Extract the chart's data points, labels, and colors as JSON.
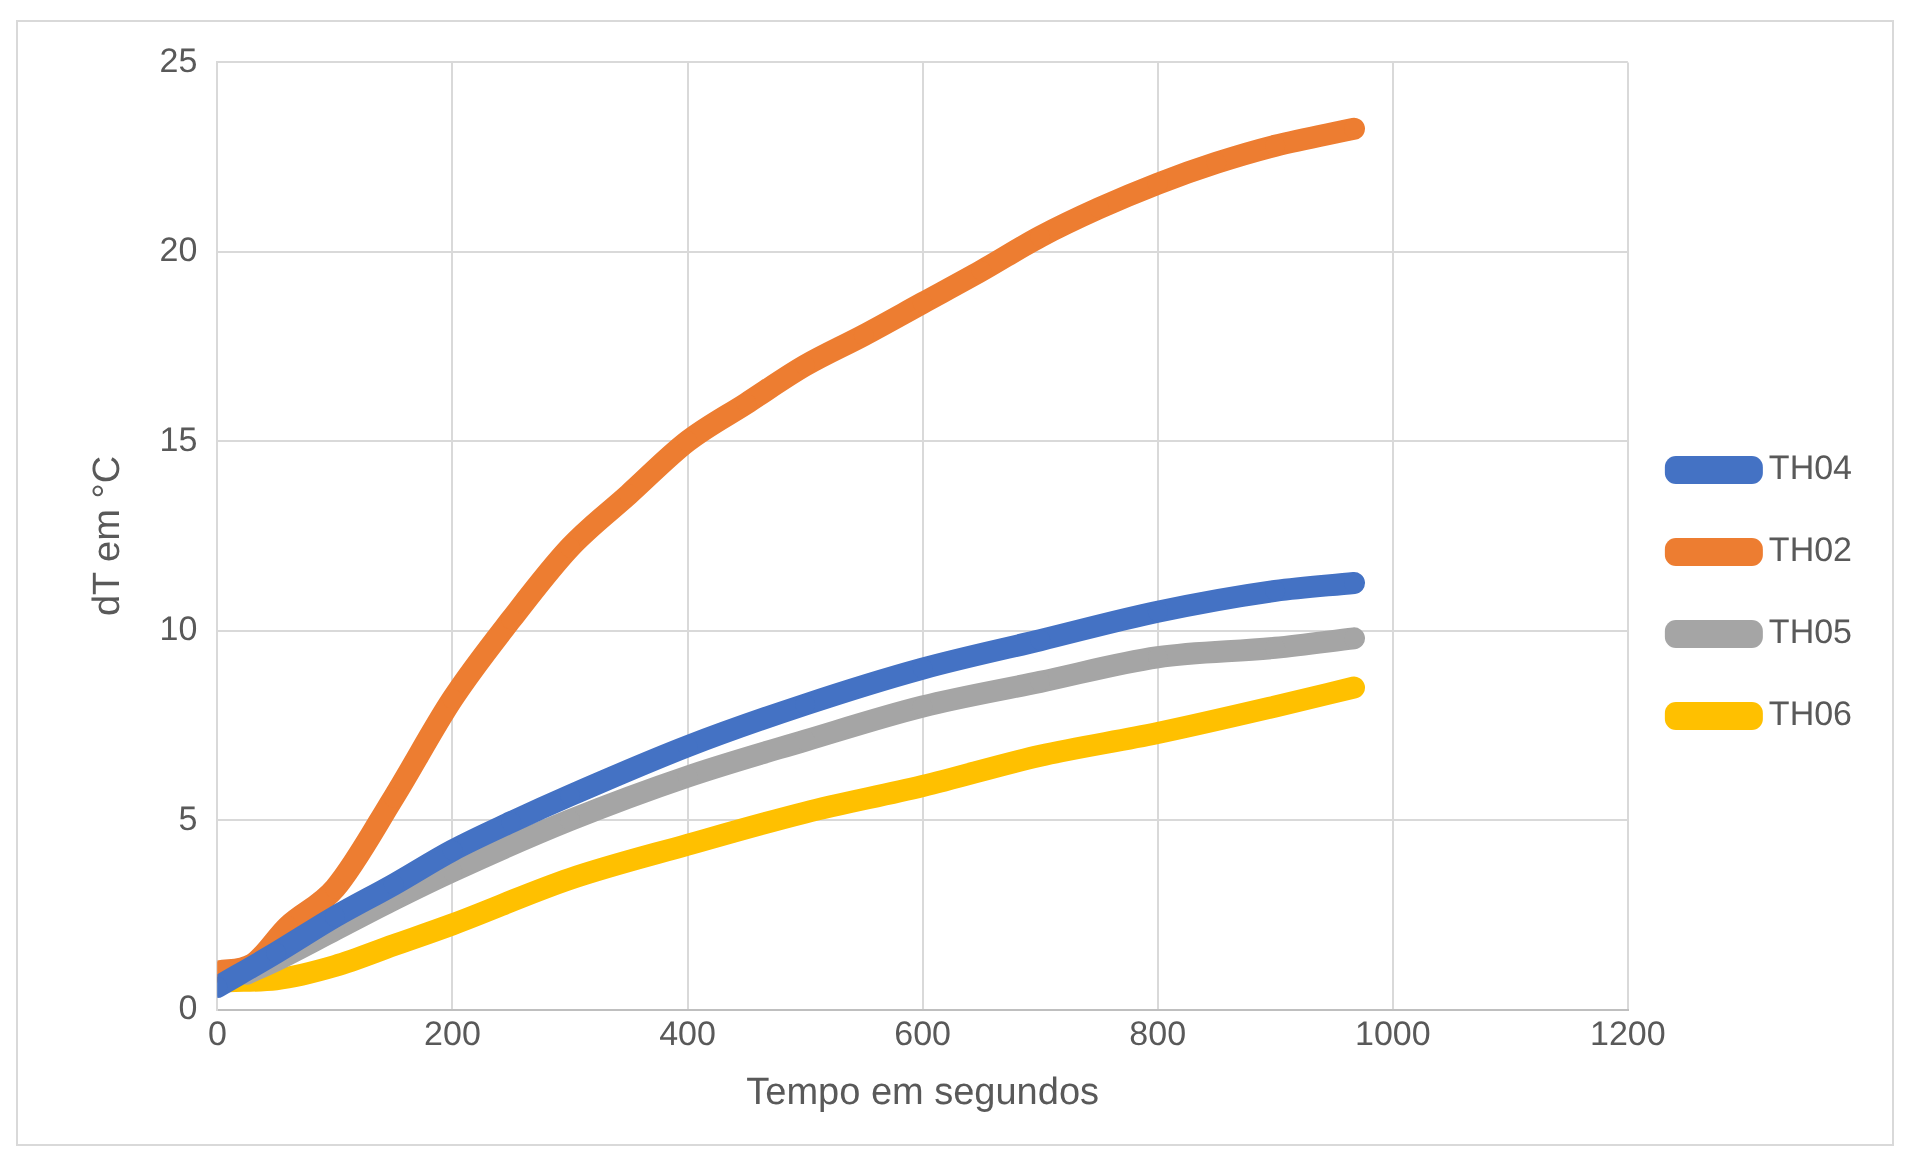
{
  "chart_data": {
    "type": "line",
    "xlabel": "Tempo em segundos",
    "ylabel": "dT em °C",
    "xlim": [
      0,
      1200
    ],
    "xticks": [
      0,
      200,
      400,
      600,
      800,
      1000,
      1200
    ],
    "ylim": [
      0,
      25
    ],
    "yticks": [
      0,
      5,
      10,
      15,
      20,
      25
    ],
    "grid": true,
    "legend": "right",
    "marker": "circle",
    "line_style": "solid",
    "series": [
      {
        "name": "TH04",
        "color": "#4472c4",
        "x": [
          0,
          50,
          100,
          150,
          200,
          250,
          300,
          400,
          500,
          600,
          700,
          800,
          900,
          967
        ],
        "values": [
          0.6,
          1.5,
          2.45,
          3.3,
          4.2,
          4.95,
          5.65,
          6.95,
          8.05,
          9.0,
          9.75,
          10.5,
          11.05,
          11.26
        ]
      },
      {
        "name": "TH02",
        "color": "#ed7d31",
        "x": [
          0,
          30,
          60,
          100,
          150,
          200,
          250,
          300,
          350,
          400,
          450,
          500,
          550,
          600,
          650,
          700,
          750,
          800,
          850,
          900,
          967
        ],
        "values": [
          1.0,
          1.2,
          2.2,
          3.2,
          5.6,
          8.2,
          10.3,
          12.2,
          13.6,
          15.0,
          16.0,
          17.0,
          17.8,
          18.65,
          19.5,
          20.4,
          21.15,
          21.8,
          22.35,
          22.8,
          23.25
        ]
      },
      {
        "name": "TH05",
        "color": "#a5a5a5",
        "x": [
          25,
          50,
          100,
          150,
          200,
          300,
          400,
          500,
          600,
          700,
          800,
          900,
          967
        ],
        "values": [
          0.95,
          1.3,
          2.1,
          2.9,
          3.65,
          5.0,
          6.15,
          7.1,
          8.0,
          8.65,
          9.3,
          9.55,
          9.8
        ]
      },
      {
        "name": "TH06",
        "color": "#ffc000",
        "x": [
          10,
          50,
          100,
          150,
          200,
          300,
          400,
          500,
          600,
          700,
          800,
          900,
          967
        ],
        "values": [
          0.75,
          0.8,
          1.15,
          1.7,
          2.25,
          3.45,
          4.35,
          5.2,
          5.9,
          6.7,
          7.3,
          8.0,
          8.5
        ]
      }
    ]
  }
}
